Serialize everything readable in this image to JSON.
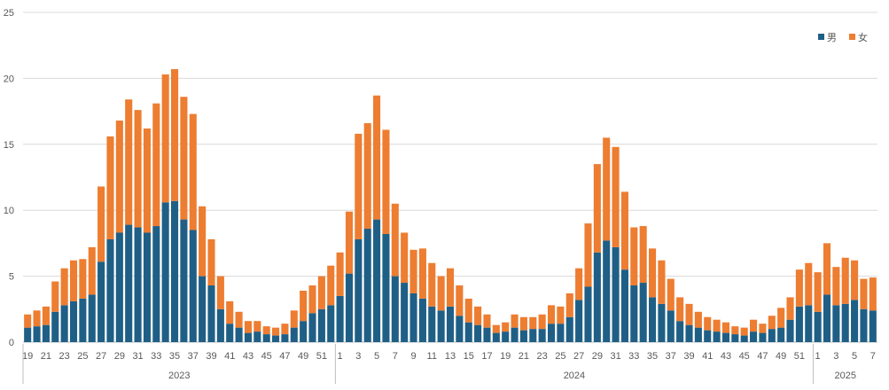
{
  "chart_data": {
    "type": "bar",
    "stacked": true,
    "ylim": [
      0,
      25
    ],
    "yticks": [
      0,
      5,
      10,
      15,
      20,
      25
    ],
    "grid": true,
    "legend_position": "top-right",
    "x": [
      "19",
      "20",
      "21",
      "22",
      "23",
      "24",
      "25",
      "26",
      "27",
      "28",
      "29",
      "30",
      "31",
      "32",
      "33",
      "34",
      "35",
      "36",
      "37",
      "38",
      "39",
      "40",
      "41",
      "42",
      "43",
      "44",
      "45",
      "46",
      "47",
      "48",
      "49",
      "50",
      "51",
      "52",
      "1",
      "2",
      "3",
      "4",
      "5",
      "6",
      "7",
      "8",
      "9",
      "10",
      "11",
      "12",
      "13",
      "14",
      "15",
      "16",
      "17",
      "18",
      "19",
      "20",
      "21",
      "22",
      "23",
      "24",
      "25",
      "26",
      "27",
      "28",
      "29",
      "30",
      "31",
      "32",
      "33",
      "34",
      "35",
      "36",
      "37",
      "38",
      "39",
      "40",
      "41",
      "42",
      "43",
      "44",
      "45",
      "46",
      "47",
      "48",
      "49",
      "50",
      "51",
      "52",
      "1",
      "2",
      "3",
      "4",
      "5",
      "6",
      "7"
    ],
    "x_tick_labels": [
      "19",
      "",
      "21",
      "",
      "23",
      "",
      "25",
      "",
      "27",
      "",
      "29",
      "",
      "31",
      "",
      "33",
      "",
      "35",
      "",
      "37",
      "",
      "39",
      "",
      "41",
      "",
      "43",
      "",
      "45",
      "",
      "47",
      "",
      "49",
      "",
      "51",
      "",
      "1",
      "",
      "3",
      "",
      "5",
      "",
      "7",
      "",
      "9",
      "",
      "11",
      "",
      "13",
      "",
      "15",
      "",
      "17",
      "",
      "19",
      "",
      "21",
      "",
      "23",
      "",
      "25",
      "",
      "27",
      "",
      "29",
      "",
      "31",
      "",
      "33",
      "",
      "35",
      "",
      "37",
      "",
      "39",
      "",
      "41",
      "",
      "43",
      "",
      "45",
      "",
      "47",
      "",
      "49",
      "",
      "51",
      "",
      "1",
      "",
      "3",
      "",
      "5",
      "",
      "7"
    ],
    "year_groups": [
      {
        "label": "2023",
        "count": 34
      },
      {
        "label": "2024",
        "count": 52
      },
      {
        "label": "2025",
        "count": 7
      }
    ],
    "series": [
      {
        "name": "男",
        "color": "#1f5f86",
        "values": [
          1.1,
          1.2,
          1.3,
          2.3,
          2.8,
          3.1,
          3.3,
          3.6,
          6.1,
          7.8,
          8.3,
          8.9,
          8.7,
          8.3,
          8.8,
          10.6,
          10.7,
          9.3,
          8.5,
          5.0,
          4.3,
          2.5,
          1.4,
          1.1,
          0.7,
          0.8,
          0.6,
          0.5,
          0.6,
          1.1,
          1.6,
          2.2,
          2.5,
          2.8,
          3.5,
          5.2,
          7.8,
          8.6,
          9.3,
          8.2,
          5.0,
          4.5,
          3.7,
          3.3,
          2.7,
          2.4,
          2.7,
          2.0,
          1.5,
          1.3,
          1.1,
          0.7,
          0.8,
          1.1,
          0.9,
          1.0,
          1.0,
          1.4,
          1.4,
          1.9,
          3.2,
          4.2,
          6.8,
          7.7,
          7.2,
          5.5,
          4.3,
          4.5,
          3.4,
          2.9,
          2.4,
          1.6,
          1.3,
          1.1,
          0.9,
          0.8,
          0.7,
          0.6,
          0.5,
          0.8,
          0.7,
          1.0,
          1.1,
          1.7,
          2.7,
          2.8,
          2.3,
          3.6,
          2.8,
          2.9,
          3.2,
          2.5,
          2.4
        ]
      },
      {
        "name": "女",
        "color": "#ed7d31",
        "values": [
          1.0,
          1.2,
          1.4,
          2.3,
          2.8,
          3.1,
          3.0,
          3.6,
          5.7,
          7.8,
          8.5,
          9.5,
          8.9,
          7.9,
          9.3,
          9.7,
          10.0,
          9.3,
          8.8,
          5.3,
          3.5,
          2.5,
          1.7,
          1.2,
          0.9,
          0.8,
          0.6,
          0.6,
          0.8,
          1.3,
          2.3,
          2.1,
          2.5,
          3.0,
          3.3,
          4.7,
          8.0,
          8.0,
          9.4,
          7.9,
          5.5,
          3.8,
          3.3,
          3.8,
          3.3,
          2.6,
          2.9,
          2.3,
          1.8,
          1.4,
          1.0,
          0.6,
          0.7,
          1.0,
          1.0,
          0.9,
          1.1,
          1.4,
          1.3,
          1.8,
          2.4,
          4.8,
          6.7,
          7.8,
          7.6,
          5.9,
          4.4,
          4.3,
          3.7,
          3.3,
          2.4,
          1.8,
          1.6,
          1.2,
          1.0,
          0.9,
          0.8,
          0.6,
          0.6,
          0.9,
          0.7,
          1.0,
          1.5,
          1.7,
          2.8,
          3.2,
          3.0,
          3.9,
          2.9,
          3.5,
          3.0,
          2.3,
          2.5
        ]
      }
    ]
  }
}
